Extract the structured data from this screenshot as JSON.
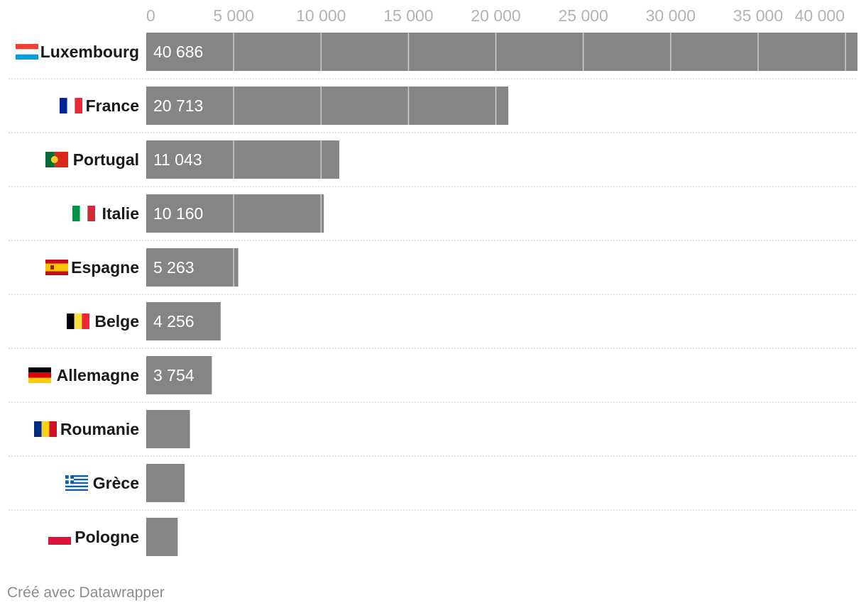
{
  "chart_data": {
    "type": "bar",
    "orientation": "horizontal",
    "title": "",
    "xlabel": "",
    "ylabel": "",
    "xlim": [
      0,
      40686
    ],
    "ticks": [
      0,
      5000,
      10000,
      15000,
      20000,
      25000,
      30000,
      35000,
      40000
    ],
    "tick_labels": [
      "0",
      "5 000",
      "10 000",
      "15 000",
      "20 000",
      "25 000",
      "30 000",
      "35 000",
      "40 000"
    ],
    "grid": true,
    "bar_color": "#858585",
    "categories": [
      "Luxembourg",
      "France",
      "Portugal",
      "Italie",
      "Espagne",
      "Belge",
      "Allemagne",
      "Roumanie",
      "Grèce",
      "Pologne"
    ],
    "values": [
      40686,
      20713,
      11043,
      10160,
      5263,
      4256,
      3754,
      2500,
      2200,
      1800
    ],
    "value_labels": [
      "40 686",
      "20 713",
      "11 043",
      "10 160",
      "5 263",
      "4 256",
      "3 754",
      "",
      "",
      ""
    ],
    "flags": [
      "luxembourg-flag-icon",
      "france-flag-icon",
      "portugal-flag-icon",
      "italy-flag-icon",
      "spain-flag-icon",
      "belgium-flag-icon",
      "germany-flag-icon",
      "romania-flag-icon",
      "greece-flag-icon",
      "poland-flag-icon"
    ]
  },
  "footer": {
    "credit": "Créé avec Datawrapper"
  }
}
